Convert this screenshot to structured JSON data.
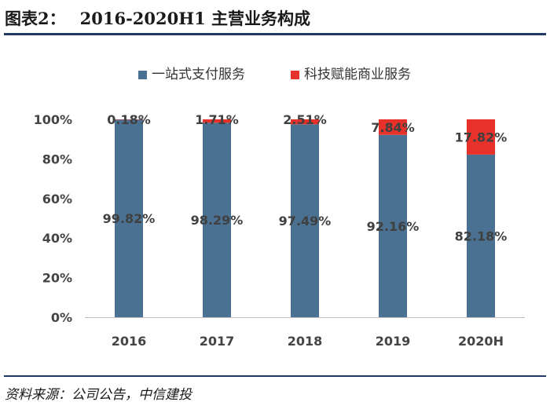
{
  "header": {
    "label": "图表2：",
    "title": "2016-2020H1 主营业务构成"
  },
  "footer": {
    "source": "资料来源：公司公告，中信建投"
  },
  "colors": {
    "series1": "#4a7191",
    "series2": "#e8312a",
    "rule": "#1f3864"
  },
  "chart_data": {
    "type": "bar",
    "stacked": true,
    "categories": [
      "2016",
      "2017",
      "2018",
      "2019",
      "2020H"
    ],
    "series": [
      {
        "name": "一站式支付服务",
        "values": [
          99.82,
          98.29,
          97.49,
          92.16,
          82.18
        ],
        "labels": [
          "99.82%",
          "98.29%",
          "97.49%",
          "92.16%",
          "82.18%"
        ]
      },
      {
        "name": "科技赋能商业服务",
        "values": [
          0.18,
          1.71,
          2.51,
          7.84,
          17.82
        ],
        "labels": [
          "0.18%",
          "1.71%",
          "2.51%",
          "7.84%",
          "17.82%"
        ]
      }
    ],
    "ylim": [
      0,
      100
    ],
    "yticks": [
      0,
      20,
      40,
      60,
      80,
      100
    ],
    "ytick_labels": [
      "0%",
      "20%",
      "40%",
      "60%",
      "80%",
      "100%"
    ],
    "legend_position": "top",
    "grid": false
  }
}
